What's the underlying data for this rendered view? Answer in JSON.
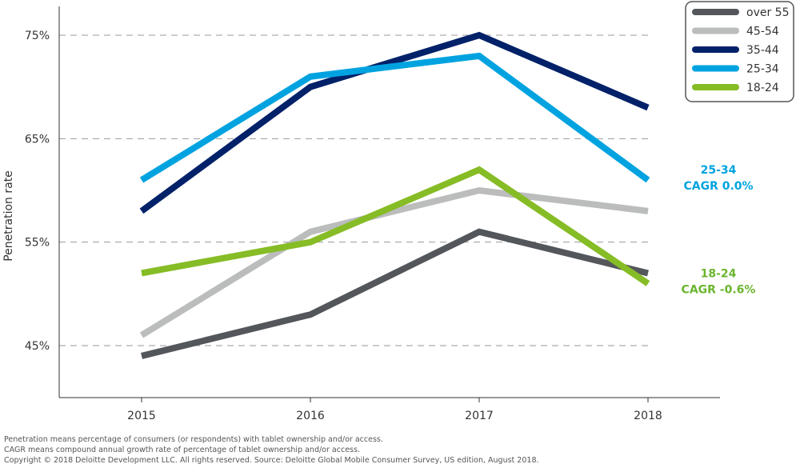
{
  "chart_data": {
    "type": "line",
    "title": "",
    "xlabel": "",
    "ylabel": "Penetration rate",
    "x": [
      "2015",
      "2016",
      "2017",
      "2018"
    ],
    "ylim": [
      40,
      75
    ],
    "yticks": [
      45,
      55,
      65,
      75
    ],
    "ytick_labels": [
      "45%",
      "55%",
      "65%",
      "75%"
    ],
    "grid": "horizontal dashed",
    "legend_placement": "top-right",
    "series": [
      {
        "name": "over 55",
        "color": "#53565a",
        "values": [
          44,
          48,
          56,
          52
        ]
      },
      {
        "name": "45-54",
        "color": "#bbbcbc",
        "values": [
          46,
          56,
          60,
          58
        ]
      },
      {
        "name": "35-44",
        "color": "#012169",
        "values": [
          58,
          70,
          75,
          68
        ]
      },
      {
        "name": "25-34",
        "color": "#00a3e0",
        "values": [
          61,
          71,
          73,
          61
        ]
      },
      {
        "name": "18-24",
        "color": "#86bc25",
        "values": [
          52,
          55,
          62,
          51
        ]
      }
    ],
    "annotations": [
      {
        "series": "25-34",
        "line1": "25-34",
        "line2": "CAGR 0.0%",
        "color": "#00a3e0"
      },
      {
        "series": "18-24",
        "line1": "18-24",
        "line2": "CAGR -0.6%",
        "color": "#6bb52e"
      }
    ]
  },
  "footnotes": [
    "Penetration means percentage of consumers (or respondents) with tablet ownership and/or access.",
    "CAGR means compound annual growth rate of percentage of tablet ownership and/or access.",
    "Copyright © 2018 Deloitte Development LLC. All rights reserved. Source: Deloitte Global Mobile Consumer Survey, US edition, August 2018."
  ]
}
